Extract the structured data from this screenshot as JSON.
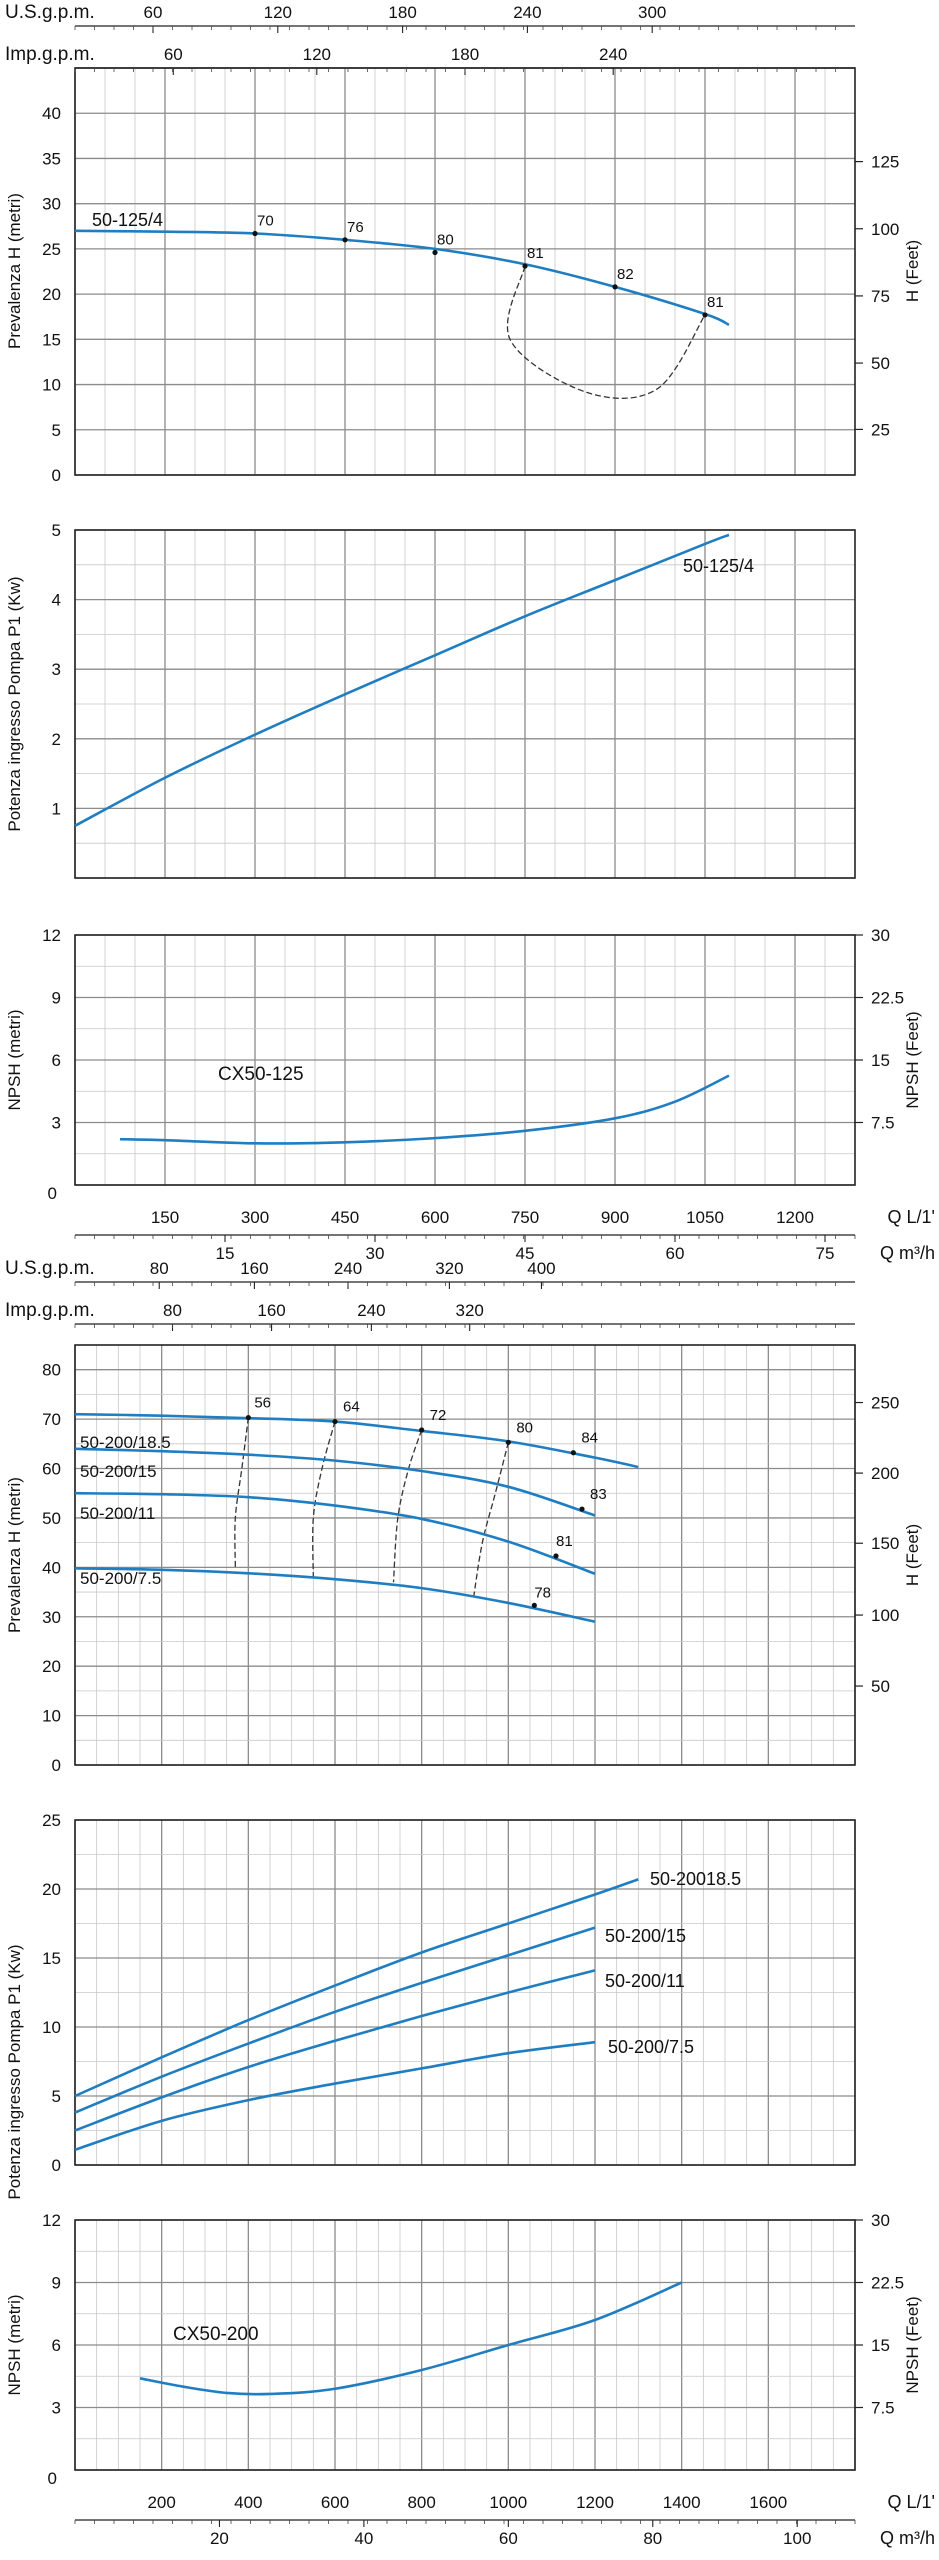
{
  "colors": {
    "curve": "#1f7ec2",
    "grid": "#8c8c8c",
    "grid_minor": "#c8c8c8",
    "text": "#111111",
    "efficiency": "#333333"
  },
  "chart_data": [
    {
      "id": "c1",
      "type": "line",
      "title": "",
      "xlabel": "",
      "ylabel": "Prevalenza H (metri)",
      "ylim": [
        0,
        45
      ],
      "xlim": [
        0,
        1300
      ],
      "yticks": [
        "0",
        "5",
        "10",
        "15",
        "20",
        "25",
        "30",
        "35",
        "40"
      ],
      "y2label": "H (Feet)",
      "y2ticks": [
        "25",
        "50",
        "75",
        "100",
        "125"
      ],
      "top_scales": [
        {
          "label": "U.S.g.p.m.",
          "ticks": [
            "60",
            "120",
            "180",
            "240",
            "300"
          ]
        },
        {
          "label": "Imp.g.p.m.",
          "ticks": [
            "60",
            "120",
            "180",
            "240"
          ]
        }
      ],
      "series": [
        {
          "name": "50-125/4",
          "x": [
            0,
            150,
            300,
            450,
            600,
            750,
            900,
            1050,
            1090
          ],
          "y": [
            27,
            26.9,
            26.7,
            26,
            25,
            23.3,
            20.8,
            17.8,
            16.6
          ]
        }
      ],
      "efficiency_points": [
        {
          "x": 300,
          "y": 26.7,
          "label": "70"
        },
        {
          "x": 450,
          "y": 26,
          "label": "76"
        },
        {
          "x": 600,
          "y": 24.6,
          "label": "80"
        },
        {
          "x": 750,
          "y": 23.1,
          "label": "81"
        },
        {
          "x": 900,
          "y": 20.8,
          "label": "82"
        },
        {
          "x": 1050,
          "y": 17.7,
          "label": "81"
        }
      ],
      "efficiency_loop": [
        [
          750,
          23.1
        ],
        [
          725,
          15
        ],
        [
          850,
          9.2
        ],
        [
          970,
          9.5
        ],
        [
          1050,
          17.7
        ]
      ]
    },
    {
      "id": "c2",
      "type": "line",
      "title": "",
      "xlabel": "",
      "ylabel": "Potenza ingresso Pompa P1 (Kw)",
      "ylim": [
        0,
        5
      ],
      "xlim": [
        0,
        1300
      ],
      "yticks": [
        "1",
        "2",
        "3",
        "4",
        "5"
      ],
      "series": [
        {
          "name": "50-125/4",
          "x": [
            0,
            150,
            300,
            450,
            600,
            750,
            900,
            1050,
            1090
          ],
          "y": [
            0.75,
            1.44,
            2.06,
            2.64,
            3.2,
            3.76,
            4.28,
            4.8,
            4.93
          ]
        }
      ]
    },
    {
      "id": "c3",
      "type": "line",
      "title": "",
      "xlabel": "",
      "ylabel": "NPSH (metri)",
      "ylim": [
        0,
        12
      ],
      "xlim": [
        0,
        1300
      ],
      "yticks": [
        "3",
        "6",
        "9",
        "12"
      ],
      "y2label": "NPSH (Feet)",
      "y2ticks": [
        "7.5",
        "15",
        "22.5",
        "30"
      ],
      "annotation": "CX50-125",
      "xticks": [
        "150",
        "300",
        "450",
        "600",
        "750",
        "900",
        "1050",
        "1200"
      ],
      "xunit": "Q  L/1'",
      "xticks2": [
        "15",
        "30",
        "45",
        "60",
        "75"
      ],
      "xunit2": "Q  m³/h",
      "zero_label": "0",
      "series": [
        {
          "name": "CX50-125",
          "x": [
            75,
            150,
            300,
            450,
            600,
            750,
            900,
            1000,
            1090
          ],
          "y": [
            2.2,
            2.15,
            2.0,
            2.05,
            2.25,
            2.6,
            3.2,
            4.0,
            5.25
          ]
        }
      ]
    },
    {
      "id": "c4",
      "type": "line",
      "title": "",
      "xlabel": "",
      "ylabel": "Prevalenza H (metri)",
      "ylim": [
        0,
        85
      ],
      "xlim": [
        0,
        1800
      ],
      "yticks": [
        "0",
        "10",
        "20",
        "30",
        "40",
        "50",
        "60",
        "70",
        "80"
      ],
      "y2label": "H (Feet)",
      "y2ticks": [
        "50",
        "100",
        "150",
        "200",
        "250"
      ],
      "top_scales": [
        {
          "label": "U.S.g.p.m.",
          "ticks": [
            "80",
            "160",
            "240",
            "320",
            "400"
          ]
        },
        {
          "label": "Imp.g.p.m.",
          "ticks": [
            "80",
            "160",
            "240",
            "320"
          ]
        }
      ],
      "series": [
        {
          "name": "50-200/18.5",
          "x": [
            0,
            200,
            400,
            600,
            800,
            1000,
            1200,
            1300
          ],
          "y": [
            71,
            70.7,
            70.2,
            69.5,
            67.6,
            65.5,
            62.2,
            60.3
          ]
        },
        {
          "name": "50-200/15",
          "x": [
            0,
            200,
            400,
            600,
            800,
            1000,
            1200
          ],
          "y": [
            64,
            63.5,
            62.8,
            61.6,
            59.5,
            56.3,
            50.5
          ]
        },
        {
          "name": "50-200/11",
          "x": [
            0,
            200,
            400,
            600,
            800,
            1000,
            1200
          ],
          "y": [
            55,
            54.8,
            54.2,
            52.5,
            49.8,
            45.2,
            38.7
          ]
        },
        {
          "name": "50-200/7.5",
          "x": [
            0,
            200,
            400,
            600,
            800,
            1000,
            1200
          ],
          "y": [
            39.8,
            39.5,
            38.8,
            37.6,
            35.8,
            32.8,
            29
          ]
        }
      ],
      "efficiency_points": [
        {
          "x": 400,
          "y": 70.3,
          "label": "56"
        },
        {
          "x": 600,
          "y": 69.5,
          "label": "64"
        },
        {
          "x": 800,
          "y": 67.8,
          "label": "72"
        },
        {
          "x": 1000,
          "y": 65.3,
          "label": "80"
        },
        {
          "x": 1150,
          "y": 63.2,
          "label": "84"
        },
        {
          "x": 1170,
          "y": 51.8,
          "label": "83"
        },
        {
          "x": 1110,
          "y": 42.3,
          "label": "81"
        },
        {
          "x": 1060,
          "y": 32.3,
          "label": "78"
        }
      ],
      "efficiency_lines": [
        [
          [
            400,
            70.3
          ],
          [
            385,
            60
          ],
          [
            370,
            50
          ],
          [
            370,
            40
          ]
        ],
        [
          [
            600,
            69.5
          ],
          [
            570,
            60
          ],
          [
            550,
            50
          ],
          [
            550,
            38
          ]
        ],
        [
          [
            800,
            67.8
          ],
          [
            770,
            60
          ],
          [
            745,
            50
          ],
          [
            735,
            37
          ]
        ],
        [
          [
            1000,
            65.3
          ],
          [
            970,
            55
          ],
          [
            940,
            45
          ],
          [
            920,
            34
          ]
        ]
      ]
    },
    {
      "id": "c5",
      "type": "line",
      "title": "",
      "xlabel": "",
      "ylabel": "Potenza ingresso Pompa P1 (Kw)",
      "ylim": [
        0,
        25
      ],
      "xlim": [
        0,
        1800
      ],
      "yticks": [
        "0",
        "5",
        "10",
        "15",
        "20",
        "25"
      ],
      "series": [
        {
          "name": "50-20018.5",
          "x": [
            0,
            200,
            400,
            600,
            800,
            1000,
            1200,
            1300
          ],
          "y": [
            5,
            7.8,
            10.5,
            13,
            15.4,
            17.5,
            19.6,
            20.7
          ]
        },
        {
          "name": "50-200/15",
          "x": [
            0,
            200,
            400,
            600,
            800,
            1000,
            1200
          ],
          "y": [
            3.8,
            6.4,
            8.8,
            11.1,
            13.2,
            15.2,
            17.2
          ]
        },
        {
          "name": "50-200/11",
          "x": [
            0,
            200,
            400,
            600,
            800,
            1000,
            1200
          ],
          "y": [
            2.5,
            4.9,
            7.1,
            9,
            10.8,
            12.5,
            14.1
          ]
        },
        {
          "name": "50-200/7.5",
          "x": [
            0,
            200,
            400,
            600,
            800,
            1000,
            1200
          ],
          "y": [
            1.1,
            3.2,
            4.7,
            5.9,
            7,
            8.1,
            8.9
          ]
        }
      ]
    },
    {
      "id": "c6",
      "type": "line",
      "title": "",
      "xlabel": "",
      "ylabel": "NPSH (metri)",
      "ylim": [
        0,
        12
      ],
      "xlim": [
        0,
        1800
      ],
      "yticks": [
        "3",
        "6",
        "9",
        "12"
      ],
      "y2label": "NPSH (Feet)",
      "y2ticks": [
        "7.5",
        "15",
        "22.5",
        "30"
      ],
      "annotation": "CX50-200",
      "xticks": [
        "200",
        "400",
        "600",
        "800",
        "1000",
        "1200",
        "1400",
        "1600"
      ],
      "xunit": "Q L/1'",
      "xticks2": [
        "20",
        "40",
        "60",
        "80",
        "100"
      ],
      "xunit2": "Q m³/h",
      "zero_label": "0",
      "series": [
        {
          "name": "CX50-200",
          "x": [
            150,
            250,
            350,
            450,
            600,
            800,
            1000,
            1200,
            1400
          ],
          "y": [
            4.4,
            4.0,
            3.7,
            3.65,
            3.9,
            4.8,
            6.0,
            7.2,
            9.0
          ]
        }
      ]
    }
  ]
}
